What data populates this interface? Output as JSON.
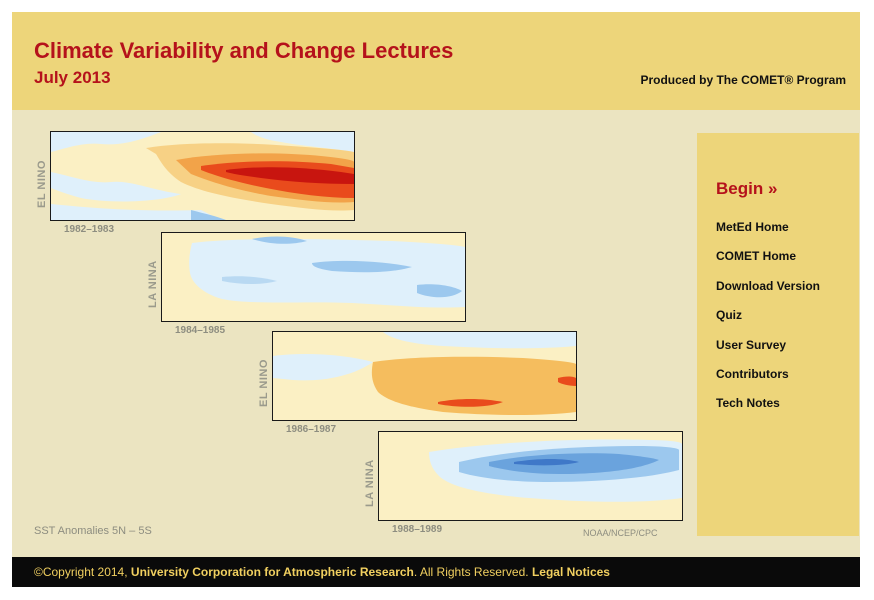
{
  "header": {
    "title": "Climate Variability and Change Lectures",
    "subtitle": "July 2013",
    "producer": "Produced by The COMET® Program"
  },
  "sidebar": {
    "begin": "Begin »",
    "items": [
      {
        "label": "MetEd Home"
      },
      {
        "label": "COMET Home"
      },
      {
        "label": "Download Version"
      },
      {
        "label": "Quiz"
      },
      {
        "label": "User Survey"
      },
      {
        "label": "Contributors"
      },
      {
        "label": "Tech Notes"
      }
    ]
  },
  "panels": [
    {
      "label": "EL NINO",
      "years": "1982–1983",
      "phase": "warm"
    },
    {
      "label": "LA NINA",
      "years": "1984–1985",
      "phase": "cool"
    },
    {
      "label": "EL NINO",
      "years": "1986–1987",
      "phase": "warm"
    },
    {
      "label": "LA NINA",
      "years": "1988–1989",
      "phase": "cool"
    }
  ],
  "caption": "SST Anomalies 5N – 5S",
  "credit": "NOAA/NCEP/CPC",
  "footer": {
    "copyright": "©Copyright 2014,",
    "org": "University Corporation for Atmospheric Research",
    "rights": ". All Rights Reserved.",
    "legal": "Legal Notices"
  },
  "colors": {
    "header_bg": "#edd57a",
    "content_bg": "#ebe4c1",
    "accent_red": "#b5121b",
    "footer_bg": "#0a0a0a",
    "footer_text": "#f1d060",
    "warm_anomaly": "#e94b1c",
    "cool_anomaly": "#6aa3dd"
  }
}
